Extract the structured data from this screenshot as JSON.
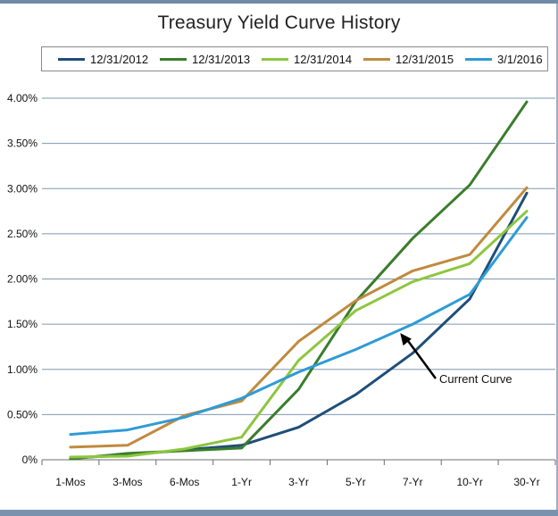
{
  "chart_data": {
    "type": "line",
    "title": "Treasury Yield Curve History",
    "xlabel": "",
    "ylabel": "",
    "categories": [
      "1-Mos",
      "3-Mos",
      "6-Mos",
      "1-Yr",
      "3-Yr",
      "5-Yr",
      "7-Yr",
      "10-Yr",
      "30-Yr"
    ],
    "y_tick_labels": [
      "0%",
      "0.50%",
      "1.00%",
      "1.50%",
      "2.00%",
      "2.50%",
      "3.00%",
      "3.50%",
      "4.00%"
    ],
    "ylim": [
      0,
      4.0
    ],
    "y_unit": "%",
    "grid": "horizontal",
    "legend_position": "top",
    "series": [
      {
        "name": "12/31/2012",
        "color": "#1f4e79",
        "values": [
          0.02,
          0.05,
          0.11,
          0.16,
          0.36,
          0.72,
          1.18,
          1.78,
          2.95
        ]
      },
      {
        "name": "12/31/2013",
        "color": "#3a7d2c",
        "values": [
          0.01,
          0.07,
          0.1,
          0.13,
          0.78,
          1.75,
          2.45,
          3.04,
          3.96
        ]
      },
      {
        "name": "12/31/2014",
        "color": "#8dc63f",
        "values": [
          0.03,
          0.04,
          0.12,
          0.25,
          1.1,
          1.65,
          1.97,
          2.17,
          2.75
        ]
      },
      {
        "name": "12/31/2015",
        "color": "#c08a3e",
        "values": [
          0.14,
          0.16,
          0.49,
          0.65,
          1.31,
          1.76,
          2.09,
          2.27,
          3.01
        ]
      },
      {
        "name": "3/1/2016",
        "color": "#2e9bd6",
        "values": [
          0.28,
          0.33,
          0.47,
          0.68,
          0.97,
          1.22,
          1.5,
          1.83,
          2.68
        ]
      }
    ],
    "annotations": [
      {
        "text": "Current Curve",
        "points_to_series": "3/1/2016",
        "points_to_category": "7-Yr"
      }
    ]
  }
}
